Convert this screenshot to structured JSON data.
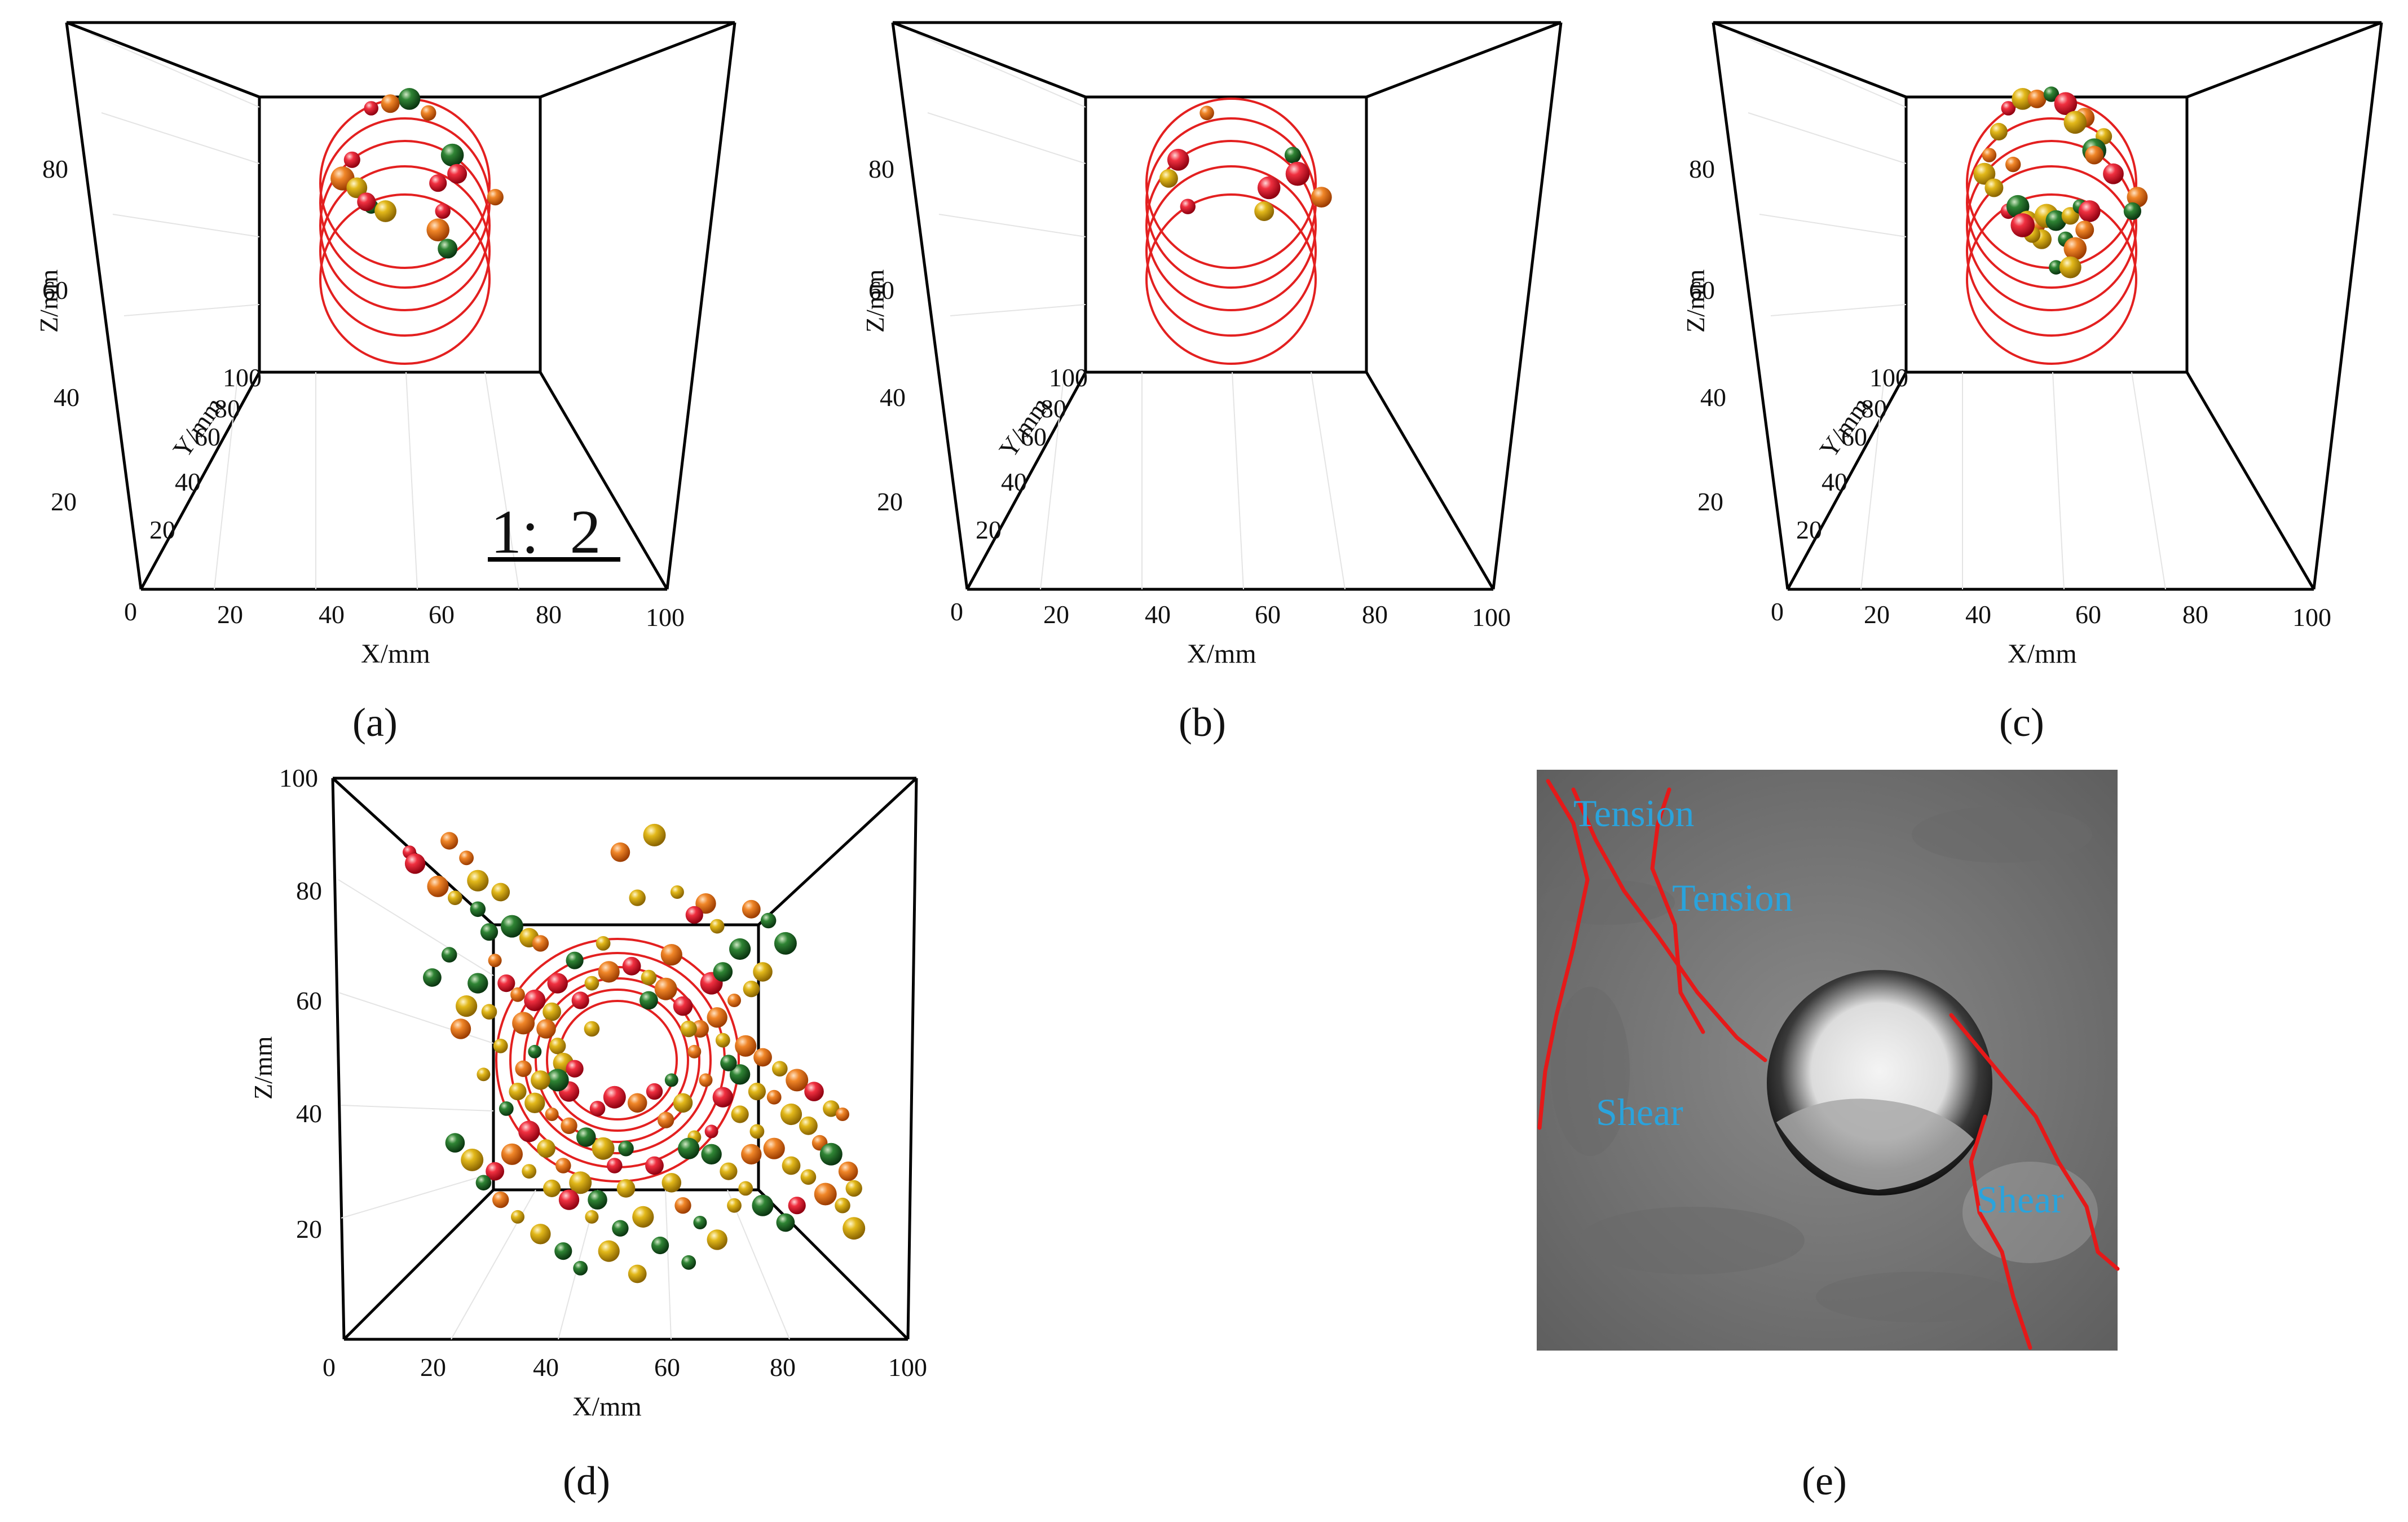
{
  "chart_data": [
    {
      "id": "a",
      "label": "(a)",
      "type": "scatter",
      "xlabel": "X/mm",
      "ylabel": "Y/mm",
      "zlabel": "Z/mm",
      "xticks": [
        "0",
        "20",
        "40",
        "60",
        "80",
        "100"
      ],
      "yticks": [
        "20",
        "40",
        "60",
        "80",
        "100"
      ],
      "zticks": [
        "20",
        "40",
        "60",
        "80"
      ],
      "xlim": [
        0,
        100
      ],
      "ylim": [
        0,
        100
      ],
      "zlim": [
        0,
        100
      ],
      "annotation": "1:  2",
      "borehole_rings": {
        "center": [
          50,
          50
        ],
        "radius_mm": 15,
        "count": 5
      },
      "events": [
        [
          44,
          77,
          "red"
        ],
        [
          52,
          79,
          "green"
        ],
        [
          48,
          78,
          "orange"
        ],
        [
          56,
          76,
          "orange"
        ],
        [
          61,
          67,
          "green"
        ],
        [
          62,
          63,
          "red"
        ],
        [
          40,
          66,
          "red"
        ],
        [
          38,
          62,
          "orange"
        ],
        [
          41,
          60,
          "yellow"
        ],
        [
          58,
          61,
          "red"
        ],
        [
          44,
          56,
          "green"
        ],
        [
          47,
          55,
          "yellow"
        ],
        [
          43,
          57,
          "red"
        ],
        [
          59,
          55,
          "red"
        ],
        [
          58,
          51,
          "orange"
        ],
        [
          60,
          47,
          "green"
        ],
        [
          70,
          58,
          "orange"
        ]
      ]
    },
    {
      "id": "b",
      "label": "(b)",
      "type": "scatter",
      "xlabel": "X/mm",
      "ylabel": "Y/mm",
      "zlabel": "Z/mm",
      "xticks": [
        "0",
        "20",
        "40",
        "60",
        "80",
        "100"
      ],
      "yticks": [
        "20",
        "40",
        "60",
        "80",
        "100"
      ],
      "zticks": [
        "20",
        "40",
        "60",
        "80"
      ],
      "xlim": [
        0,
        100
      ],
      "ylim": [
        0,
        100
      ],
      "zlim": [
        0,
        100
      ],
      "borehole_rings": {
        "center": [
          50,
          50
        ],
        "radius_mm": 15,
        "count": 5
      },
      "events": [
        [
          46,
          76,
          "orange"
        ],
        [
          40,
          66,
          "red"
        ],
        [
          38,
          62,
          "yellow"
        ],
        [
          42,
          56,
          "red"
        ],
        [
          59,
          60,
          "red"
        ],
        [
          58,
          55,
          "yellow"
        ],
        [
          64,
          67,
          "green"
        ],
        [
          65,
          63,
          "red"
        ],
        [
          70,
          58,
          "orange"
        ]
      ]
    },
    {
      "id": "c",
      "label": "(c)",
      "type": "scatter",
      "xlabel": "X/mm",
      "ylabel": "Y/mm",
      "zlabel": "Z/mm",
      "xticks": [
        "0",
        "20",
        "40",
        "60",
        "80",
        "100"
      ],
      "yticks": [
        "20",
        "40",
        "60",
        "80",
        "100"
      ],
      "zticks": [
        "20",
        "40",
        "60",
        "80"
      ],
      "xlim": [
        0,
        100
      ],
      "ylim": [
        0,
        100
      ],
      "zlim": [
        0,
        100
      ],
      "borehole_rings": {
        "center": [
          50,
          50
        ],
        "radius_mm": 15,
        "count": 5
      },
      "events": [
        [
          42,
          77,
          "red"
        ],
        [
          45,
          79,
          "yellow"
        ],
        [
          48,
          79,
          "orange"
        ],
        [
          51,
          80,
          "green"
        ],
        [
          54,
          78,
          "red"
        ],
        [
          58,
          75,
          "orange"
        ],
        [
          62,
          71,
          "yellow"
        ],
        [
          60,
          68,
          "green"
        ],
        [
          64,
          63,
          "red"
        ],
        [
          40,
          72,
          "yellow"
        ],
        [
          38,
          67,
          "orange"
        ],
        [
          37,
          63,
          "yellow"
        ],
        [
          39,
          60,
          "yellow"
        ],
        [
          42,
          55,
          "red"
        ],
        [
          44,
          56,
          "green"
        ],
        [
          46,
          53,
          "yellow"
        ],
        [
          48,
          52,
          "orange"
        ],
        [
          50,
          54,
          "yellow"
        ],
        [
          52,
          53,
          "green"
        ],
        [
          55,
          54,
          "yellow"
        ],
        [
          57,
          56,
          "green"
        ],
        [
          59,
          55,
          "red"
        ],
        [
          58,
          51,
          "orange"
        ],
        [
          54,
          49,
          "green"
        ],
        [
          56,
          47,
          "orange"
        ],
        [
          49,
          49,
          "yellow"
        ],
        [
          47,
          50,
          "yellow"
        ],
        [
          45,
          52,
          "red"
        ],
        [
          69,
          58,
          "orange"
        ],
        [
          68,
          55,
          "green"
        ],
        [
          52,
          43,
          "green"
        ],
        [
          55,
          43,
          "yellow"
        ],
        [
          60,
          67,
          "orange"
        ],
        [
          43,
          65,
          "orange"
        ],
        [
          56,
          74,
          "yellow"
        ]
      ]
    },
    {
      "id": "d",
      "label": "(d)",
      "type": "scatter",
      "xlabel": "X/mm",
      "zlabel": "Z/mm",
      "xticks": [
        "0",
        "20",
        "40",
        "60",
        "80",
        "100"
      ],
      "zticks": [
        "20",
        "40",
        "60",
        "80",
        "100"
      ],
      "xlim": [
        0,
        100
      ],
      "zlim": [
        0,
        100
      ],
      "borehole_rings": {
        "center": [
          50,
          50
        ],
        "radius_mm": 15,
        "count": 6
      },
      "events": [
        [
          12,
          86,
          "red"
        ],
        [
          13,
          84,
          "red"
        ],
        [
          19,
          88,
          "orange"
        ],
        [
          22,
          85,
          "orange"
        ],
        [
          24,
          81,
          "yellow"
        ],
        [
          28,
          79,
          "yellow"
        ],
        [
          24,
          76,
          "green"
        ],
        [
          30,
          73,
          "green"
        ],
        [
          33,
          71,
          "yellow"
        ],
        [
          35,
          70,
          "orange"
        ],
        [
          27,
          67,
          "orange"
        ],
        [
          24,
          63,
          "green"
        ],
        [
          29,
          63,
          "red"
        ],
        [
          31,
          61,
          "orange"
        ],
        [
          34,
          60,
          "red"
        ],
        [
          37,
          58,
          "yellow"
        ],
        [
          26,
          58,
          "yellow"
        ],
        [
          32,
          56,
          "orange"
        ],
        [
          36,
          55,
          "orange"
        ],
        [
          38,
          52,
          "yellow"
        ],
        [
          34,
          51,
          "green"
        ],
        [
          39,
          49,
          "yellow"
        ],
        [
          41,
          48,
          "red"
        ],
        [
          28,
          52,
          "yellow"
        ],
        [
          22,
          59,
          "yellow"
        ],
        [
          16,
          64,
          "green"
        ],
        [
          19,
          68,
          "green"
        ],
        [
          55,
          89,
          "yellow"
        ],
        [
          49,
          86,
          "orange"
        ],
        [
          52,
          78,
          "yellow"
        ],
        [
          59,
          79,
          "yellow"
        ],
        [
          64,
          77,
          "orange"
        ],
        [
          62,
          75,
          "red"
        ],
        [
          66,
          73,
          "yellow"
        ],
        [
          70,
          69,
          "green"
        ],
        [
          72,
          76,
          "orange"
        ],
        [
          75,
          74,
          "green"
        ],
        [
          78,
          70,
          "green"
        ],
        [
          74,
          65,
          "yellow"
        ],
        [
          72,
          62,
          "yellow"
        ],
        [
          69,
          60,
          "orange"
        ],
        [
          66,
          57,
          "orange"
        ],
        [
          63,
          55,
          "orange"
        ],
        [
          67,
          53,
          "yellow"
        ],
        [
          71,
          52,
          "orange"
        ],
        [
          74,
          50,
          "orange"
        ],
        [
          77,
          48,
          "yellow"
        ],
        [
          80,
          46,
          "orange"
        ],
        [
          83,
          44,
          "red"
        ],
        [
          86,
          41,
          "yellow"
        ],
        [
          88,
          40,
          "orange"
        ],
        [
          70,
          47,
          "green"
        ],
        [
          73,
          44,
          "yellow"
        ],
        [
          76,
          43,
          "orange"
        ],
        [
          79,
          40,
          "yellow"
        ],
        [
          82,
          38,
          "yellow"
        ],
        [
          84,
          35,
          "orange"
        ],
        [
          86,
          33,
          "green"
        ],
        [
          89,
          30,
          "orange"
        ],
        [
          90,
          27,
          "yellow"
        ],
        [
          64,
          46,
          "orange"
        ],
        [
          67,
          43,
          "red"
        ],
        [
          70,
          40,
          "yellow"
        ],
        [
          73,
          37,
          "yellow"
        ],
        [
          76,
          34,
          "orange"
        ],
        [
          79,
          31,
          "yellow"
        ],
        [
          82,
          29,
          "yellow"
        ],
        [
          85,
          26,
          "orange"
        ],
        [
          60,
          42,
          "yellow"
        ],
        [
          57,
          39,
          "orange"
        ],
        [
          62,
          36,
          "yellow"
        ],
        [
          65,
          33,
          "green"
        ],
        [
          68,
          30,
          "yellow"
        ],
        [
          71,
          27,
          "yellow"
        ],
        [
          74,
          24,
          "green"
        ],
        [
          78,
          21,
          "green"
        ],
        [
          88,
          24,
          "yellow"
        ],
        [
          90,
          20,
          "yellow"
        ],
        [
          58,
          28,
          "yellow"
        ],
        [
          60,
          24,
          "orange"
        ],
        [
          63,
          21,
          "green"
        ],
        [
          66,
          18,
          "yellow"
        ],
        [
          56,
          17,
          "green"
        ],
        [
          61,
          14,
          "green"
        ],
        [
          53,
          22,
          "yellow"
        ],
        [
          50,
          27,
          "yellow"
        ],
        [
          48,
          31,
          "red"
        ],
        [
          46,
          34,
          "yellow"
        ],
        [
          43,
          36,
          "green"
        ],
        [
          40,
          38,
          "orange"
        ],
        [
          37,
          40,
          "orange"
        ],
        [
          34,
          42,
          "yellow"
        ],
        [
          31,
          44,
          "yellow"
        ],
        [
          29,
          41,
          "green"
        ],
        [
          33,
          37,
          "red"
        ],
        [
          36,
          34,
          "yellow"
        ],
        [
          39,
          31,
          "orange"
        ],
        [
          42,
          28,
          "yellow"
        ],
        [
          45,
          25,
          "green"
        ],
        [
          49,
          20,
          "green"
        ],
        [
          44,
          22,
          "yellow"
        ],
        [
          40,
          25,
          "red"
        ],
        [
          37,
          27,
          "yellow"
        ],
        [
          33,
          30,
          "yellow"
        ],
        [
          30,
          33,
          "orange"
        ],
        [
          27,
          30,
          "red"
        ],
        [
          25,
          28,
          "green"
        ],
        [
          23,
          32,
          "yellow"
        ],
        [
          20,
          35,
          "green"
        ],
        [
          28,
          25,
          "orange"
        ],
        [
          31,
          22,
          "yellow"
        ],
        [
          35,
          19,
          "yellow"
        ],
        [
          39,
          16,
          "green"
        ],
        [
          42,
          13,
          "green"
        ],
        [
          47,
          16,
          "yellow"
        ],
        [
          52,
          12,
          "yellow"
        ],
        [
          45,
          41,
          "red"
        ],
        [
          48,
          43,
          "red"
        ],
        [
          52,
          42,
          "orange"
        ],
        [
          55,
          44,
          "red"
        ],
        [
          58,
          46,
          "green"
        ],
        [
          40,
          44,
          "red"
        ],
        [
          42,
          60,
          "red"
        ],
        [
          44,
          63,
          "yellow"
        ],
        [
          47,
          65,
          "orange"
        ],
        [
          51,
          66,
          "red"
        ],
        [
          54,
          64,
          "yellow"
        ],
        [
          57,
          62,
          "orange"
        ],
        [
          60,
          59,
          "red"
        ],
        [
          61,
          55,
          "yellow"
        ],
        [
          62,
          51,
          "orange"
        ],
        [
          38,
          63,
          "red"
        ],
        [
          41,
          67,
          "green"
        ],
        [
          46,
          70,
          "yellow"
        ],
        [
          58,
          68,
          "orange"
        ],
        [
          54,
          60,
          "green"
        ],
        [
          44,
          55,
          "yellow"
        ],
        [
          65,
          63,
          "red"
        ],
        [
          67,
          65,
          "green"
        ],
        [
          68,
          49,
          "green"
        ],
        [
          65,
          37,
          "red"
        ],
        [
          72,
          33,
          "orange"
        ],
        [
          80,
          24,
          "red"
        ],
        [
          69,
          24,
          "yellow"
        ],
        [
          61,
          34,
          "green"
        ],
        [
          55,
          31,
          "red"
        ],
        [
          50,
          34,
          "green"
        ],
        [
          38,
          46,
          "green"
        ],
        [
          35,
          46,
          "yellow"
        ],
        [
          32,
          48,
          "orange"
        ],
        [
          25,
          47,
          "yellow"
        ],
        [
          21,
          55,
          "orange"
        ],
        [
          26,
          72,
          "green"
        ],
        [
          20,
          78,
          "yellow"
        ],
        [
          17,
          80,
          "orange"
        ]
      ]
    }
  ],
  "photo": {
    "label": "(e)",
    "annotations": [
      "Tension",
      "Tension",
      "Shear",
      "Shear"
    ]
  },
  "colors": {
    "red": "#e0182d",
    "orange": "#e8731a",
    "yellow": "#d8ae12",
    "green": "#1f6b28",
    "ring": "#e32020",
    "crack": "#e51919",
    "annotation": "#2aa3dc"
  }
}
